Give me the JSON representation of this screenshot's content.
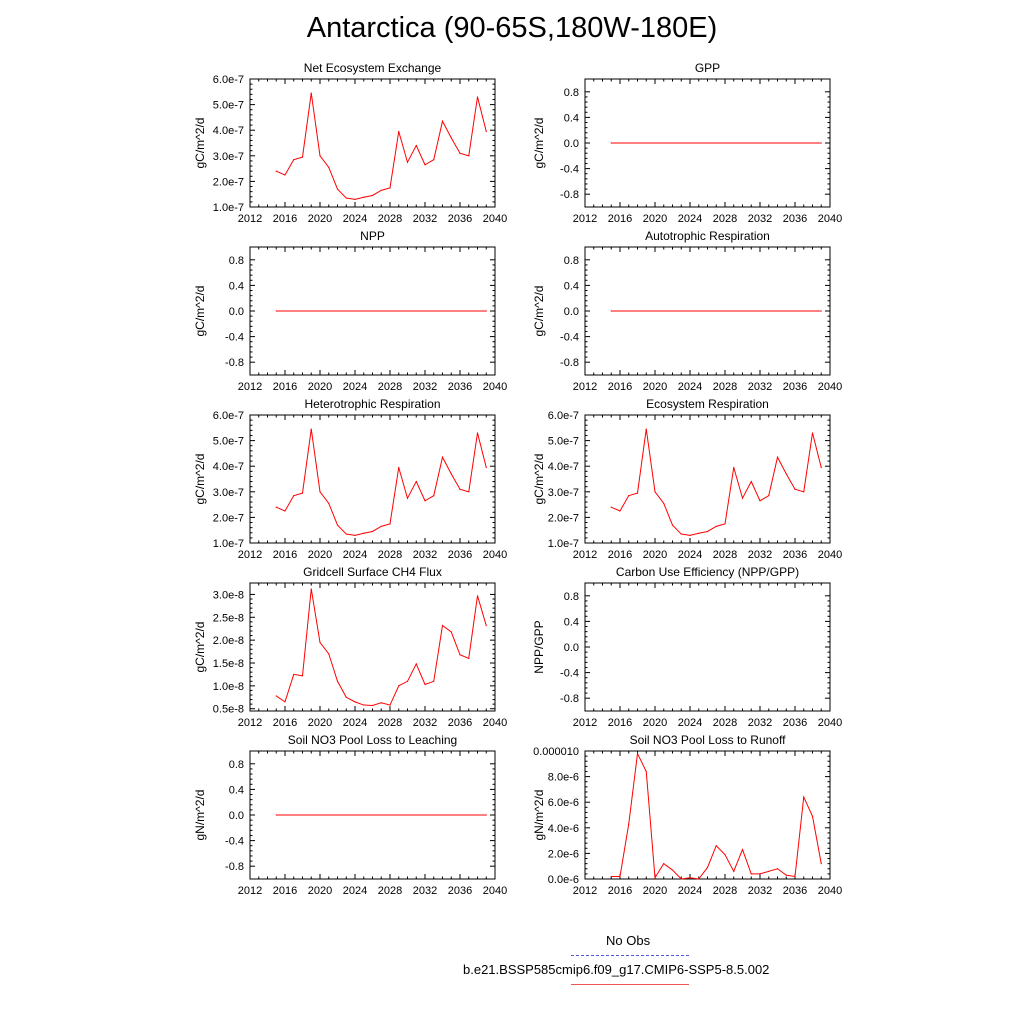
{
  "title": "Antarctica (90-65S,180W-180E)",
  "colors": {
    "model": "#ff0000",
    "obs": "#5555dd"
  },
  "legend": {
    "obs_label": "No Obs",
    "model_label": "b.e21.BSSP585cmip6.f09_g17.CMIP6-SSP5-8.5.002"
  },
  "chart_data": [
    {
      "type": "line",
      "title": "Net Ecosystem Exchange",
      "ylabel": "gC/m^2/d",
      "xlim": [
        2012,
        2040
      ],
      "ylim": [
        1e-07,
        6e-07
      ],
      "xticks": [
        2012,
        2016,
        2020,
        2024,
        2028,
        2032,
        2036,
        2040
      ],
      "yticks": [
        1e-07,
        2e-07,
        3e-07,
        4e-07,
        5e-07,
        6e-07
      ],
      "yticklabels": [
        "1.0e-7",
        "2.0e-7",
        "3.0e-7",
        "4.0e-7",
        "5.0e-7",
        "6.0e-7"
      ],
      "x": [
        2015,
        2016,
        2017,
        2018,
        2019,
        2020,
        2021,
        2022,
        2023,
        2024,
        2025,
        2026,
        2027,
        2028,
        2029,
        2030,
        2031,
        2032,
        2033,
        2034,
        2035,
        2036,
        2037,
        2038,
        2039
      ],
      "y": [
        2.4e-07,
        2.25e-07,
        2.85e-07,
        2.95e-07,
        5.45e-07,
        3e-07,
        2.55e-07,
        1.7e-07,
        1.35e-07,
        1.3e-07,
        1.38e-07,
        1.45e-07,
        1.65e-07,
        1.75e-07,
        3.95e-07,
        2.75e-07,
        3.4e-07,
        2.65e-07,
        2.85e-07,
        4.35e-07,
        3.7e-07,
        3.1e-07,
        3e-07,
        5.3e-07,
        3.95e-07
      ]
    },
    {
      "type": "line",
      "title": "GPP",
      "ylabel": "gC/m^2/d",
      "xlim": [
        2012,
        2040
      ],
      "ylim": [
        -1.0,
        1.0
      ],
      "xticks": [
        2012,
        2016,
        2020,
        2024,
        2028,
        2032,
        2036,
        2040
      ],
      "yticks": [
        -0.8,
        -0.4,
        0.0,
        0.4,
        0.8
      ],
      "yticklabels": [
        "-0.8",
        "-0.4",
        "0.0",
        "0.4",
        "0.8"
      ],
      "x": [
        2015,
        2039
      ],
      "y": [
        0,
        0
      ]
    },
    {
      "type": "line",
      "title": "NPP",
      "ylabel": "gC/m^2/d",
      "xlim": [
        2012,
        2040
      ],
      "ylim": [
        -1.0,
        1.0
      ],
      "xticks": [
        2012,
        2016,
        2020,
        2024,
        2028,
        2032,
        2036,
        2040
      ],
      "yticks": [
        -0.8,
        -0.4,
        0.0,
        0.4,
        0.8
      ],
      "yticklabels": [
        "-0.8",
        "-0.4",
        "0.0",
        "0.4",
        "0.8"
      ],
      "x": [
        2015,
        2039
      ],
      "y": [
        0,
        0
      ]
    },
    {
      "type": "line",
      "title": "Autotrophic Respiration",
      "ylabel": "gC/m^2/d",
      "xlim": [
        2012,
        2040
      ],
      "ylim": [
        -1.0,
        1.0
      ],
      "xticks": [
        2012,
        2016,
        2020,
        2024,
        2028,
        2032,
        2036,
        2040
      ],
      "yticks": [
        -0.8,
        -0.4,
        0.0,
        0.4,
        0.8
      ],
      "yticklabels": [
        "-0.8",
        "-0.4",
        "0.0",
        "0.4",
        "0.8"
      ],
      "x": [
        2015,
        2039
      ],
      "y": [
        0,
        0
      ]
    },
    {
      "type": "line",
      "title": "Heterotrophic Respiration",
      "ylabel": "gC/m^2/d",
      "xlim": [
        2012,
        2040
      ],
      "ylim": [
        1e-07,
        6e-07
      ],
      "xticks": [
        2012,
        2016,
        2020,
        2024,
        2028,
        2032,
        2036,
        2040
      ],
      "yticks": [
        1e-07,
        2e-07,
        3e-07,
        4e-07,
        5e-07,
        6e-07
      ],
      "yticklabels": [
        "1.0e-7",
        "2.0e-7",
        "3.0e-7",
        "4.0e-7",
        "5.0e-7",
        "6.0e-7"
      ],
      "x": [
        2015,
        2016,
        2017,
        2018,
        2019,
        2020,
        2021,
        2022,
        2023,
        2024,
        2025,
        2026,
        2027,
        2028,
        2029,
        2030,
        2031,
        2032,
        2033,
        2034,
        2035,
        2036,
        2037,
        2038,
        2039
      ],
      "y": [
        2.4e-07,
        2.25e-07,
        2.85e-07,
        2.95e-07,
        5.45e-07,
        3e-07,
        2.55e-07,
        1.7e-07,
        1.35e-07,
        1.3e-07,
        1.38e-07,
        1.45e-07,
        1.65e-07,
        1.75e-07,
        3.95e-07,
        2.75e-07,
        3.4e-07,
        2.65e-07,
        2.85e-07,
        4.35e-07,
        3.7e-07,
        3.1e-07,
        3e-07,
        5.3e-07,
        3.95e-07
      ]
    },
    {
      "type": "line",
      "title": "Ecosystem Respiration",
      "ylabel": "gC/m^2/d",
      "xlim": [
        2012,
        2040
      ],
      "ylim": [
        1e-07,
        6e-07
      ],
      "xticks": [
        2012,
        2016,
        2020,
        2024,
        2028,
        2032,
        2036,
        2040
      ],
      "yticks": [
        1e-07,
        2e-07,
        3e-07,
        4e-07,
        5e-07,
        6e-07
      ],
      "yticklabels": [
        "1.0e-7",
        "2.0e-7",
        "3.0e-7",
        "4.0e-7",
        "5.0e-7",
        "6.0e-7"
      ],
      "x": [
        2015,
        2016,
        2017,
        2018,
        2019,
        2020,
        2021,
        2022,
        2023,
        2024,
        2025,
        2026,
        2027,
        2028,
        2029,
        2030,
        2031,
        2032,
        2033,
        2034,
        2035,
        2036,
        2037,
        2038,
        2039
      ],
      "y": [
        2.4e-07,
        2.25e-07,
        2.85e-07,
        2.95e-07,
        5.45e-07,
        3e-07,
        2.55e-07,
        1.7e-07,
        1.35e-07,
        1.3e-07,
        1.38e-07,
        1.45e-07,
        1.65e-07,
        1.75e-07,
        3.95e-07,
        2.75e-07,
        3.4e-07,
        2.65e-07,
        2.85e-07,
        4.35e-07,
        3.7e-07,
        3.1e-07,
        3e-07,
        5.3e-07,
        3.95e-07
      ]
    },
    {
      "type": "line",
      "title": "Gridcell Surface CH4 Flux",
      "ylabel": "gC/m^2/d",
      "xlim": [
        2012,
        2040
      ],
      "ylim": [
        4.5e-09,
        3.25e-08
      ],
      "xticks": [
        2012,
        2016,
        2020,
        2024,
        2028,
        2032,
        2036,
        2040
      ],
      "yticks": [
        5e-09,
        1e-08,
        1.5e-08,
        2e-08,
        2.5e-08,
        3e-08
      ],
      "yticklabels": [
        "0.5e-8",
        "1.0e-8",
        "1.5e-8",
        "2.0e-8",
        "2.5e-8",
        "3.0e-8"
      ],
      "x": [
        2015,
        2016,
        2017,
        2018,
        2019,
        2020,
        2021,
        2022,
        2023,
        2024,
        2025,
        2026,
        2027,
        2028,
        2029,
        2030,
        2031,
        2032,
        2033,
        2034,
        2035,
        2036,
        2037,
        2038,
        2039
      ],
      "y": [
        7.8e-09,
        6.5e-09,
        1.25e-08,
        1.22e-08,
        3.12e-08,
        1.95e-08,
        1.7e-08,
        1.1e-08,
        7.5e-09,
        6.5e-09,
        5.8e-09,
        5.7e-09,
        6.3e-09,
        5.8e-09,
        1e-08,
        1.1e-08,
        1.48e-08,
        1.03e-08,
        1.1e-08,
        2.32e-08,
        2.18e-08,
        1.68e-08,
        1.6e-08,
        2.97e-08,
        2.32e-08
      ]
    },
    {
      "type": "line",
      "title": "Carbon Use Efficiency (NPP/GPP)",
      "ylabel": "NPP/GPP",
      "xlim": [
        2012,
        2040
      ],
      "ylim": [
        -1.0,
        1.0
      ],
      "xticks": [
        2012,
        2016,
        2020,
        2024,
        2028,
        2032,
        2036,
        2040
      ],
      "yticks": [
        -0.8,
        -0.4,
        0.0,
        0.4,
        0.8
      ],
      "yticklabels": [
        "-0.8",
        "-0.4",
        "0.0",
        "0.4",
        "0.8"
      ],
      "x": [],
      "y": []
    },
    {
      "type": "line",
      "title": "Soil NO3 Pool Loss to Leaching",
      "ylabel": "gN/m^2/d",
      "xlim": [
        2012,
        2040
      ],
      "ylim": [
        -1.0,
        1.0
      ],
      "xticks": [
        2012,
        2016,
        2020,
        2024,
        2028,
        2032,
        2036,
        2040
      ],
      "yticks": [
        -0.8,
        -0.4,
        0.0,
        0.4,
        0.8
      ],
      "yticklabels": [
        "-0.8",
        "-0.4",
        "0.0",
        "0.4",
        "0.8"
      ],
      "x": [
        2015,
        2039
      ],
      "y": [
        0,
        0
      ]
    },
    {
      "type": "line",
      "title": "Soil NO3 Pool Loss to Runoff",
      "ylabel": "gN/m^2/d",
      "xlim": [
        2012,
        2040
      ],
      "ylim": [
        0.0,
        1e-05
      ],
      "xticks": [
        2012,
        2016,
        2020,
        2024,
        2028,
        2032,
        2036,
        2040
      ],
      "yticks": [
        0.0,
        2e-06,
        4e-06,
        6e-06,
        8e-06,
        1e-05
      ],
      "yticklabels": [
        "0.0e-6",
        "2.0e-6",
        "4.0e-6",
        "6.0e-6",
        "8.0e-6",
        "0.000010"
      ],
      "x": [
        2015,
        2016,
        2017,
        2018,
        2019,
        2020,
        2021,
        2022,
        2023,
        2024,
        2025,
        2026,
        2027,
        2028,
        2029,
        2030,
        2031,
        2032,
        2033,
        2034,
        2035,
        2036,
        2037,
        2038,
        2039
      ],
      "y": [
        2e-07,
        2e-07,
        4.3e-06,
        9.8e-06,
        8.4e-06,
        1e-07,
        1.2e-06,
        7e-07,
        0.0,
        1e-07,
        0.0,
        9e-07,
        2.6e-06,
        1.9e-06,
        6e-07,
        2.3e-06,
        4e-07,
        4e-07,
        6e-07,
        8e-07,
        3e-07,
        2e-07,
        6.4e-06,
        4.9e-06,
        1.2e-06
      ]
    }
  ]
}
